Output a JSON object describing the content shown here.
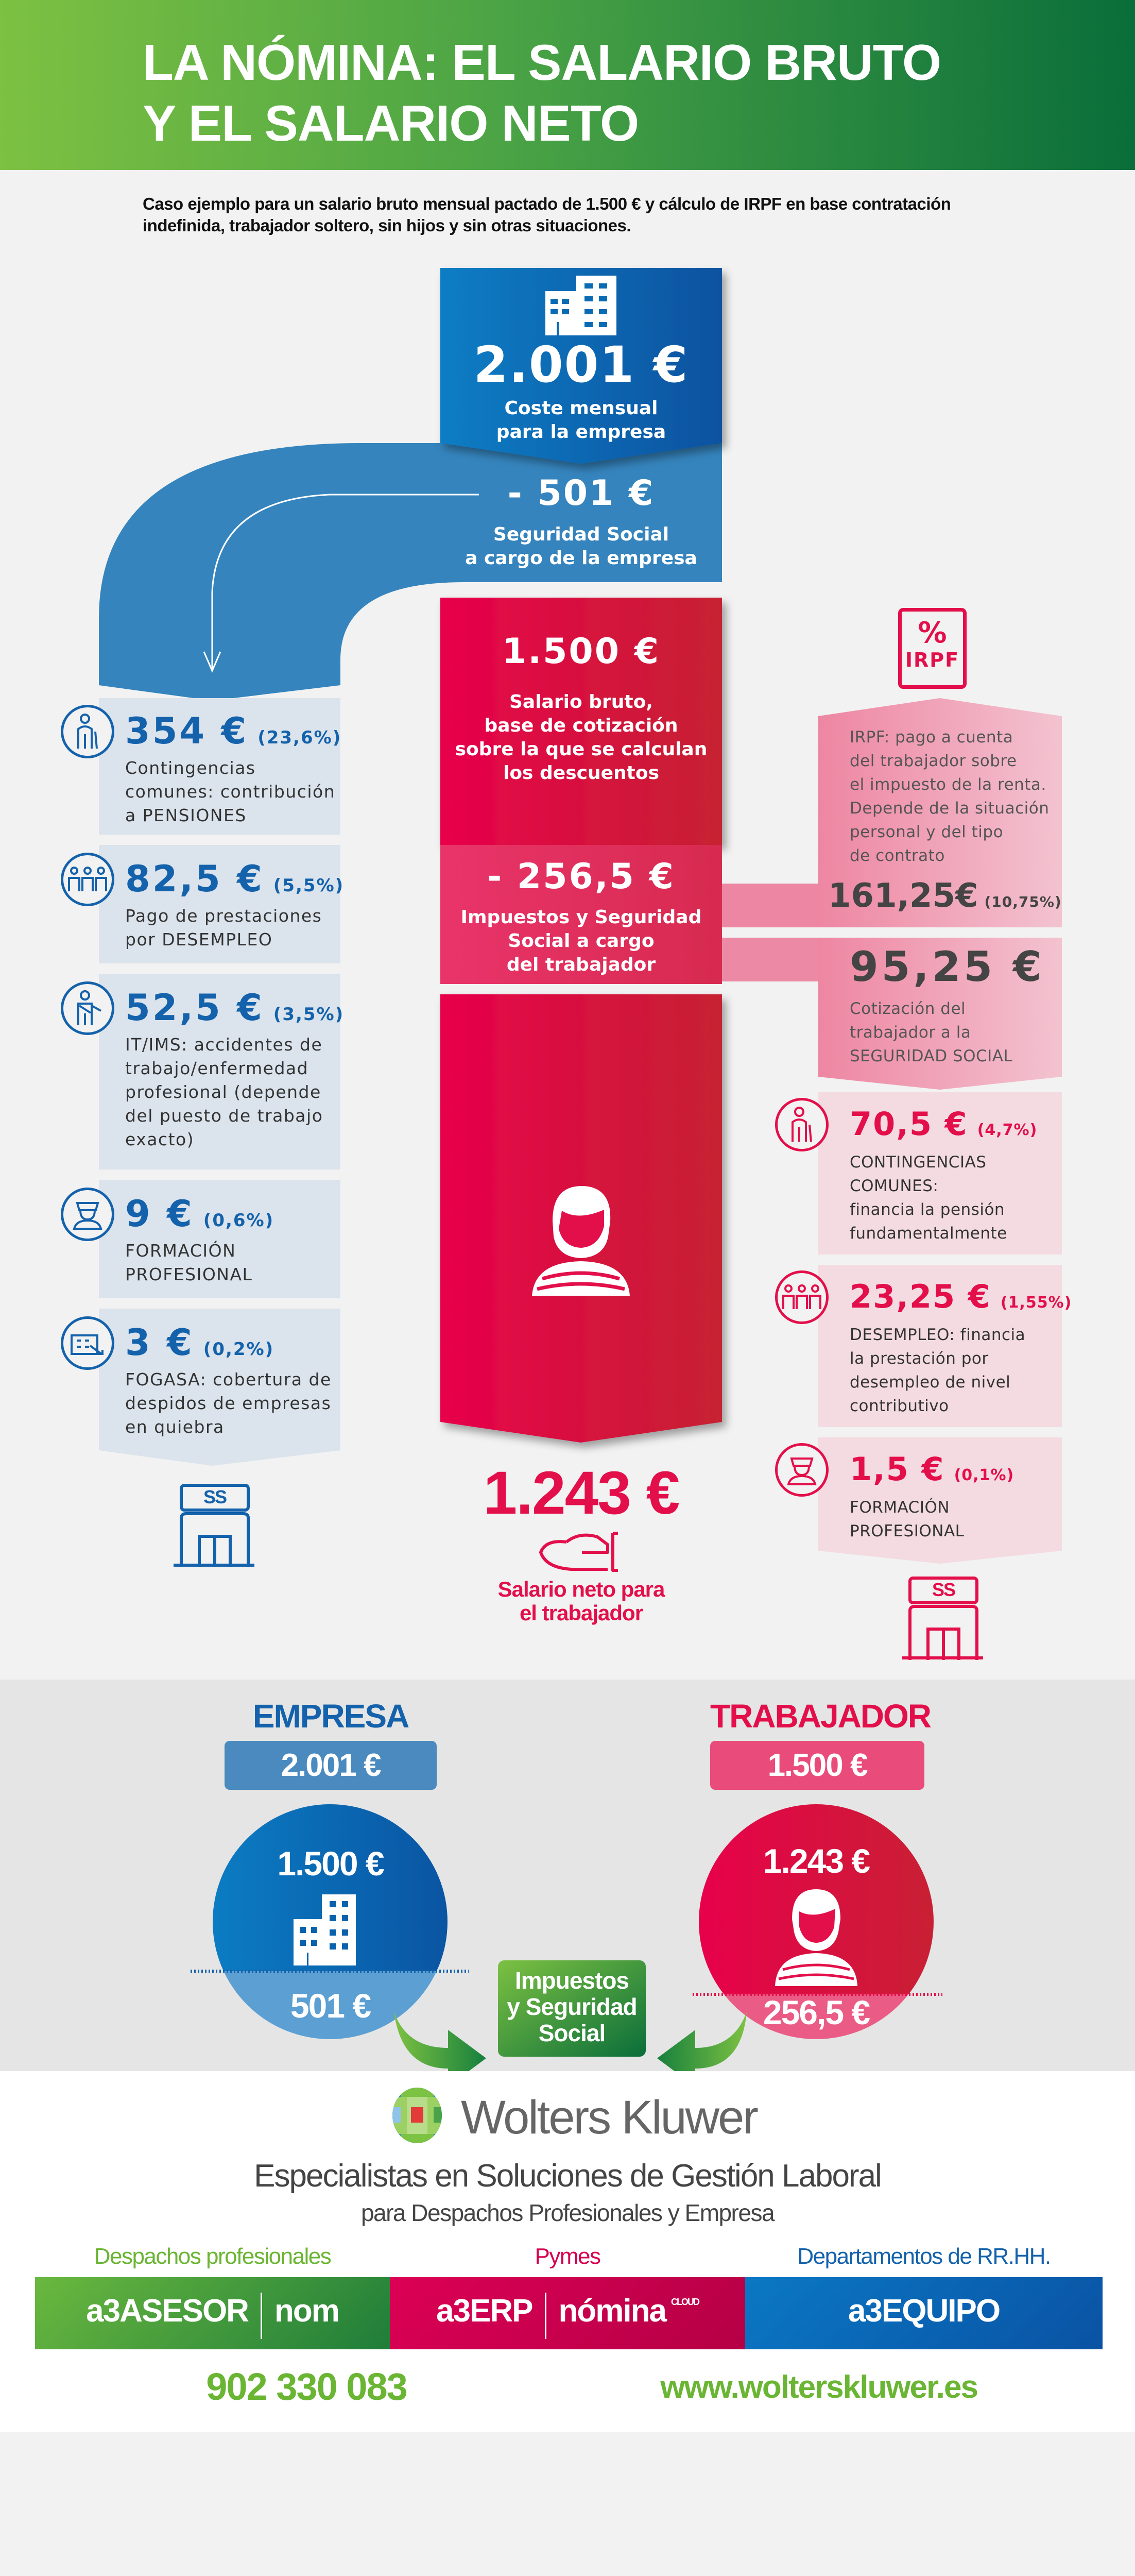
{
  "header": {
    "title_line1": "LA NÓMINA: EL SALARIO BRUTO",
    "title_line2": "Y EL SALARIO NETO",
    "intro": "Caso ejemplo para un salario bruto mensual pactado de 1.500 € y cálculo de IRPF en base contratación\nindefinida, trabajador soltero, sin hijos y sin otras situaciones."
  },
  "colors": {
    "green": "#4aa345",
    "blue": "#1462ab",
    "red": "#e30f4a",
    "pink": "#ec8aa5"
  },
  "flow": {
    "company_cost": {
      "amount": "2.001 €",
      "label": "Coste mensual\npara la empresa",
      "icon": "building-icon"
    },
    "company_ss": {
      "amount": "- 501 €",
      "label": "Seguridad Social\na cargo de la empresa"
    },
    "gross": {
      "amount": "1.500 €",
      "label": "Salario bruto,\nbase de cotización\nsobre la que se calculan\nlos descuentos"
    },
    "worker_deductions": {
      "amount": "- 256,5 €",
      "label": "Impuestos y Seguridad\nSocial a cargo\ndel trabajador"
    },
    "net": {
      "amount": "1.243 €",
      "label": "Salario neto para\nel trabajador",
      "icon": "person-icon"
    }
  },
  "left_items": [
    {
      "amount": "354 €",
      "pct": "(23,6%)",
      "desc": "Contingencias\ncomunes: contribución\na PENSIONES",
      "icon": "elderly-person-icon"
    },
    {
      "amount": "82,5 €",
      "pct": "(5,5%)",
      "desc": "Pago de prestaciones\npor DESEMPLEO",
      "icon": "group-people-icon"
    },
    {
      "amount": "52,5 €",
      "pct": "(3,5%)",
      "desc": "IT/IMS: accidentes de\ntrabajo/enfermedad\nprofesional (depende\ndel puesto de trabajo\nexacto)",
      "icon": "injured-worker-icon"
    },
    {
      "amount": "9 €",
      "pct": "(0,6%)",
      "desc": "FORMACIÓN\nPROFESIONAL",
      "icon": "graduate-icon"
    },
    {
      "amount": "3 €",
      "pct": "(0,2%)",
      "desc": "FOGASA: cobertura de\ndespidos de empresas\nen quiebra",
      "icon": "declining-company-icon"
    }
  ],
  "irpf": {
    "badge_symbol": "%",
    "badge_label": "IRPF",
    "desc": "IRPF: pago a cuenta\ndel trabajador sobre\nel impuesto de la renta.\nDepende de la situación\npersonal y del tipo\nde contrato",
    "amount": "161,25€",
    "pct": "(10,75%)"
  },
  "worker_ss": {
    "amount": "95,25 €",
    "desc": "Cotización del\ntrabajador a la\nSEGURIDAD SOCIAL"
  },
  "right_items": [
    {
      "amount": "70,5 €",
      "pct": "(4,7%)",
      "desc": "CONTINGENCIAS\nCOMUNES:\nfinancia la pensión\nfundamentalmente",
      "icon": "elderly-person-icon"
    },
    {
      "amount": "23,25 €",
      "pct": "(1,55%)",
      "desc": "DESEMPLEO: financia\nla prestación por\ndesempleo de nivel\ncontributivo",
      "icon": "group-people-icon"
    },
    {
      "amount": "1,5 €",
      "pct": "(0,1%)",
      "desc": "FORMACIÓN\nPROFESIONAL",
      "icon": "graduate-icon"
    }
  ],
  "ss_office": {
    "label": "SS",
    "icon": "social-security-office-icon"
  },
  "summary": {
    "empresa": {
      "title": "EMPRESA",
      "total": "2.001 €",
      "top": "1.500 €",
      "bottom": "501 €"
    },
    "trabajador": {
      "title": "TRABAJADOR",
      "total": "1.500 €",
      "top": "1.243 €",
      "bottom": "256,5 €"
    },
    "center": "Impuestos\ny Seguridad\nSocial"
  },
  "footer": {
    "brand": "Wolters Kluwer",
    "tagline1": "Especialistas en Soluciones de Gestión Laboral",
    "tagline2": "para Despachos Profesionales y Empresa",
    "segments": [
      {
        "label": "Despachos profesionales",
        "product_prefix": "a3",
        "product": "ASESOR",
        "module": "nom",
        "color": "#5bb346"
      },
      {
        "label": "Pymes",
        "product_prefix": "a3",
        "product": "ERP",
        "module": "nómina",
        "module_sup": "CLOUD",
        "color": "#d6004f"
      },
      {
        "label": "Departamentos de RR.HH.",
        "product_prefix": "a3",
        "product": "EQUIPO",
        "color": "#0a65b5"
      }
    ],
    "phone": "902 330 083",
    "url": "www.wolterskluwer.es"
  }
}
